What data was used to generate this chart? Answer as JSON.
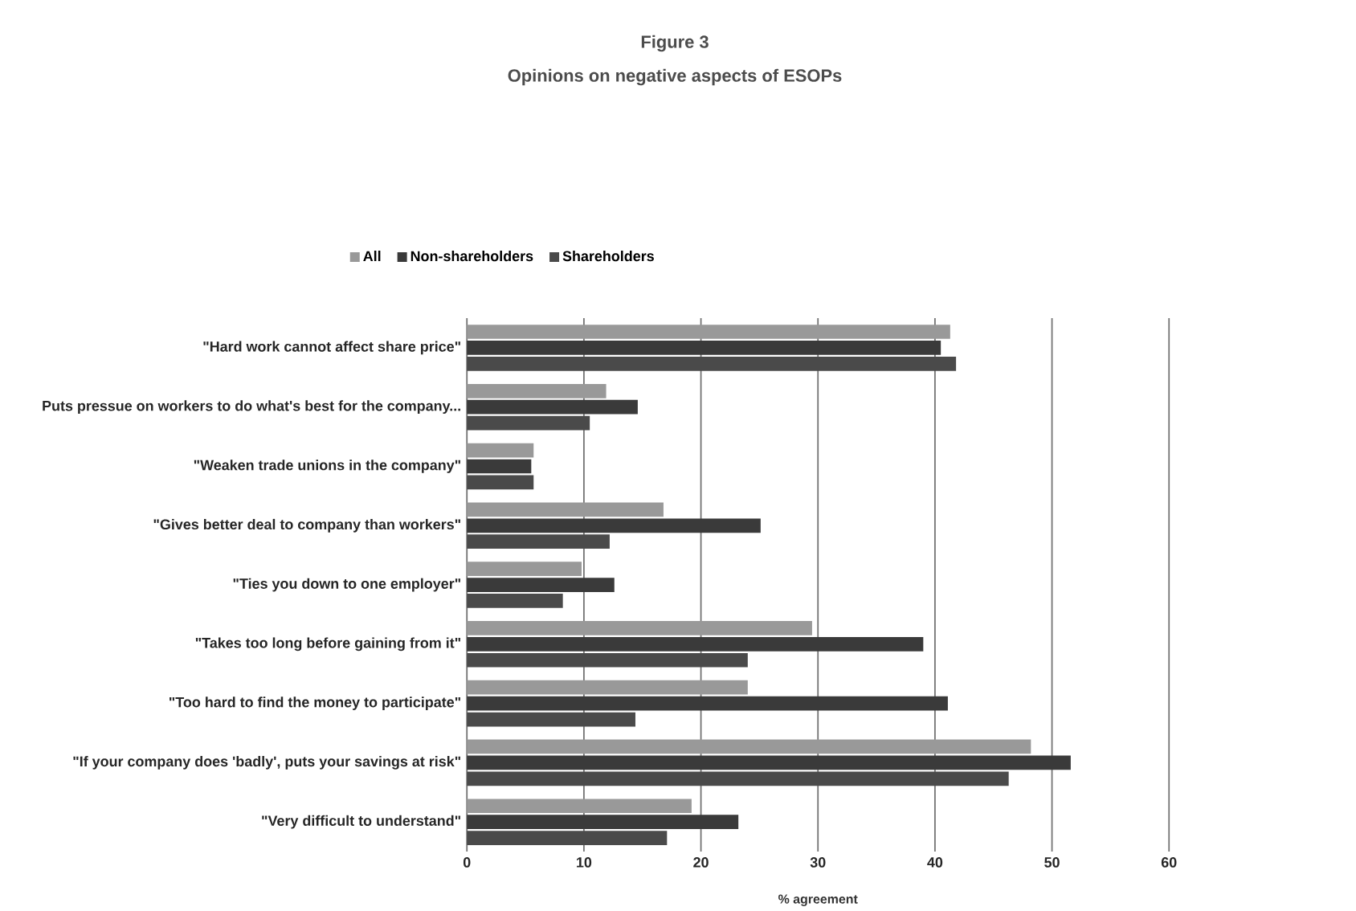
{
  "chart_data": {
    "type": "bar",
    "orientation": "horizontal",
    "title": "Figure 3",
    "subtitle": "Opinions on negative aspects of ESOPs",
    "xlabel": "% agreement",
    "categories": [
      "\"Hard work cannot affect share price\"",
      "Puts pressue on workers to do what's best for the company...",
      "\"Weaken trade unions in the company\"",
      "\"Gives better deal to company than workers\"",
      "\"Ties you down to one employer\"",
      "\"Takes too long before gaining from it\"",
      "\"Too hard to find the money to participate\"",
      "\"If your company does 'badly', puts your savings at risk\"",
      "\"Very difficult to understand\""
    ],
    "series": [
      {
        "name": "All",
        "color": "#999999",
        "values": [
          41.3,
          11.9,
          5.7,
          16.8,
          9.8,
          29.5,
          24.0,
          48.2,
          19.2
        ]
      },
      {
        "name": "Non-shareholders",
        "color": "#3a3a3a",
        "values": [
          40.5,
          14.6,
          5.5,
          25.1,
          12.6,
          39.0,
          41.1,
          51.6,
          23.2
        ]
      },
      {
        "name": "Shareholders",
        "color": "#4a4a4a",
        "values": [
          41.8,
          10.5,
          5.7,
          12.2,
          8.2,
          24.0,
          14.4,
          46.3,
          17.1
        ]
      }
    ],
    "xlim": [
      0,
      60
    ],
    "xticks": [
      0,
      10,
      20,
      30,
      40,
      50,
      60
    ],
    "grid": "x",
    "legend": "top"
  }
}
